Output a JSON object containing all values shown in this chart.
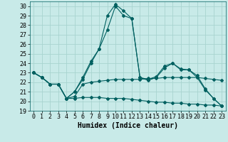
{
  "xlabel": "Humidex (Indice chaleur)",
  "background_color": "#c8eae8",
  "grid_color": "#a8d4d0",
  "line_color": "#006060",
  "xlim": [
    -0.5,
    23.5
  ],
  "ylim": [
    19,
    30.5
  ],
  "yticks": [
    19,
    20,
    21,
    22,
    23,
    24,
    25,
    26,
    27,
    28,
    29,
    30
  ],
  "xticks": [
    0,
    1,
    2,
    3,
    4,
    5,
    6,
    7,
    8,
    9,
    10,
    11,
    12,
    13,
    14,
    15,
    16,
    17,
    18,
    19,
    20,
    21,
    22,
    23
  ],
  "line1_y": [
    23.0,
    22.5,
    21.8,
    21.8,
    20.3,
    21.0,
    22.5,
    24.2,
    25.5,
    29.0,
    30.2,
    29.5,
    28.7,
    22.5,
    22.3,
    22.6,
    23.7,
    24.0,
    23.4,
    23.3,
    22.7,
    21.3,
    20.3,
    19.5
  ],
  "line2_y": [
    23.0,
    22.5,
    21.8,
    21.8,
    20.3,
    21.0,
    22.3,
    24.0,
    25.5,
    27.5,
    30.0,
    29.0,
    28.7,
    22.5,
    22.2,
    22.5,
    23.5,
    24.0,
    23.3,
    23.3,
    22.5,
    21.2,
    20.3,
    19.5
  ],
  "line3_y": [
    23.0,
    22.5,
    21.8,
    21.8,
    20.3,
    20.5,
    21.8,
    22.0,
    22.1,
    22.2,
    22.3,
    22.3,
    22.3,
    22.3,
    22.4,
    22.4,
    22.5,
    22.5,
    22.5,
    22.5,
    22.5,
    22.4,
    22.3,
    22.2
  ],
  "line4_y": [
    23.0,
    22.5,
    21.8,
    21.8,
    20.3,
    20.3,
    20.4,
    20.4,
    20.4,
    20.3,
    20.3,
    20.3,
    20.2,
    20.1,
    20.0,
    19.9,
    19.9,
    19.8,
    19.8,
    19.7,
    19.7,
    19.6,
    19.6,
    19.5
  ],
  "xlabel_fontsize": 7,
  "tick_fontsize": 6
}
